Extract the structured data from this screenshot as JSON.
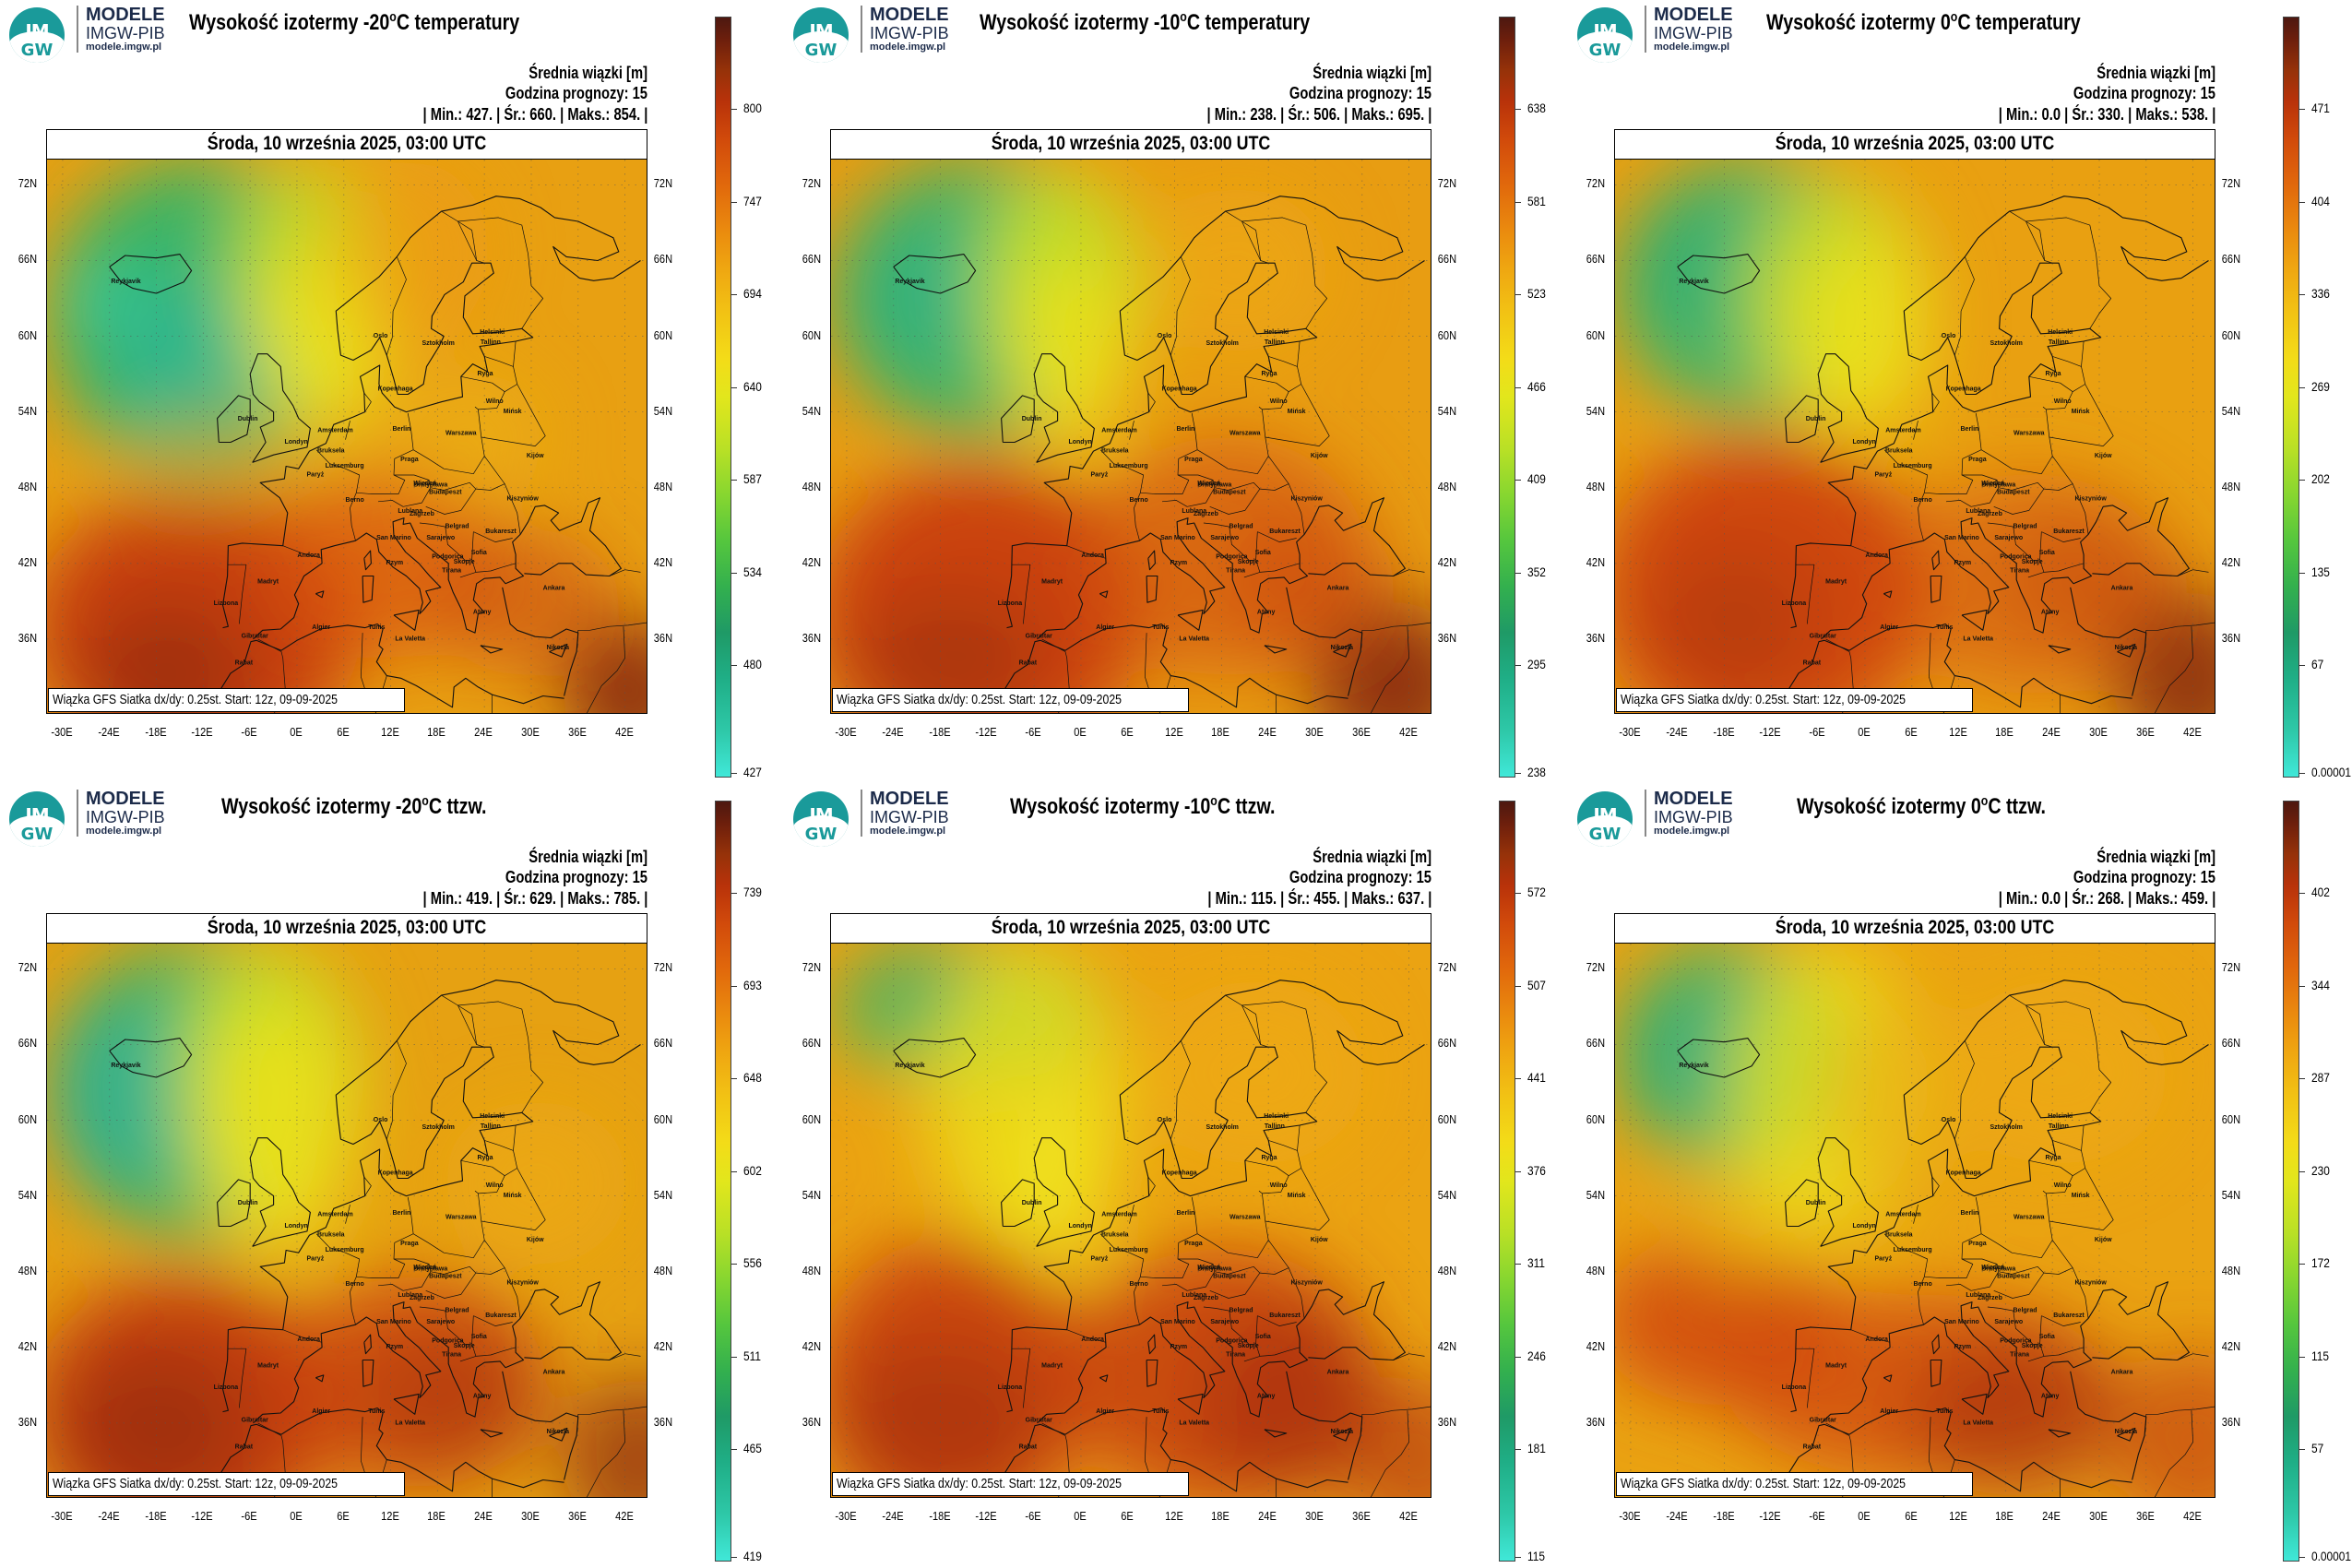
{
  "brand": {
    "line1": "MODELE",
    "line2": "IMGW-PIB",
    "line3": "modele.imgw.pl",
    "logo_top": "IM",
    "logo_bottom": "GW"
  },
  "common": {
    "units": "Średnia wiązki [m]",
    "hour": "Godzina prognozy: 15",
    "date": "Środa, 10 września 2025, 03:00 UTC",
    "footer": "Wiązka GFS Siatka dx/dy: 0.25st. Start: 12z, 09-09-2025",
    "lat_labels": [
      "72N",
      "66N",
      "60N",
      "54N",
      "48N",
      "42N",
      "36N"
    ],
    "lon_labels": [
      "-30E",
      "-24E",
      "-18E",
      "-12E",
      "-6E",
      "0E",
      "6E",
      "12E",
      "18E",
      "24E",
      "30E",
      "36E",
      "42E"
    ],
    "cities": [
      "Reykjavik",
      "Oslo",
      "Sztokholm",
      "Helsinki",
      "Tallinn",
      "Ryga",
      "Kopenhaga",
      "Wilno",
      "Mińsk",
      "Dublin",
      "Londyn",
      "Amsterdam",
      "Berlin",
      "Warszawa",
      "Bruksela",
      "Luksemburg",
      "Paryż",
      "Praga",
      "Kijów",
      "Wiedeń",
      "Berno",
      "Bratysława",
      "Budapeszt",
      "Kiszyniów",
      "Lublana",
      "Zagrzeb",
      "Belgrad",
      "Bukareszt",
      "Andora",
      "San Marino",
      "Sarajewo",
      "Sofia",
      "Podgorica",
      "Skopje",
      "Tirana",
      "Rzym",
      "Madryt",
      "Lizbona",
      "Ankara",
      "Ateny",
      "Gibraltar",
      "Algier",
      "Tunis",
      "La Valetta",
      "Nikozja",
      "Rabat"
    ],
    "icons": {
      "logo": "imgw-logo-icon"
    }
  },
  "panels": [
    {
      "title_pre": "Wysokość izotermy -20",
      "title_sup": "o",
      "title_post": "C temperatury",
      "min": "427.",
      "mean": "660.",
      "max": "854.",
      "colorbar_ticks": [
        "800",
        "747",
        "694",
        "640",
        "587",
        "534",
        "480",
        "427"
      ],
      "scheme": "t20"
    },
    {
      "title_pre": "Wysokość izotermy -10",
      "title_sup": "o",
      "title_post": "C temperatury",
      "min": "238.",
      "mean": "506.",
      "max": "695.",
      "colorbar_ticks": [
        "638",
        "581",
        "523",
        "466",
        "409",
        "352",
        "295",
        "238"
      ],
      "scheme": "t10"
    },
    {
      "title_pre": "Wysokość izotermy 0",
      "title_sup": "o",
      "title_post": "C temperatury",
      "min": "0.0",
      "mean": "330.",
      "max": "538.",
      "colorbar_ticks": [
        "471",
        "404",
        "336",
        "269",
        "202",
        "135",
        "67",
        "0.00001"
      ],
      "scheme": "t0"
    },
    {
      "title_pre": "Wysokość izotermy -20",
      "title_sup": "o",
      "title_post": "C ttzw.",
      "min": "419.",
      "mean": "629.",
      "max": "785.",
      "colorbar_ticks": [
        "739",
        "693",
        "648",
        "602",
        "556",
        "511",
        "465",
        "419"
      ],
      "scheme": "w20"
    },
    {
      "title_pre": "Wysokość izotermy -10",
      "title_sup": "o",
      "title_post": "C ttzw.",
      "min": "115.",
      "mean": "455.",
      "max": "637.",
      "colorbar_ticks": [
        "572",
        "507",
        "441",
        "376",
        "311",
        "246",
        "181",
        "115"
      ],
      "scheme": "w10"
    },
    {
      "title_pre": "Wysokość izotermy 0",
      "title_sup": "o",
      "title_post": "C ttzw.",
      "min": "0.0",
      "mean": "268.",
      "max": "459.",
      "colorbar_ticks": [
        "402",
        "344",
        "287",
        "230",
        "172",
        "115",
        "57",
        "0.00001"
      ],
      "scheme": "w0"
    }
  ],
  "labels": {
    "min": "Min.:",
    "mean": "Śr.:",
    "max": "Maks.:"
  },
  "colors": {
    "green": "#2fb56a",
    "yellow": "#f2e21a",
    "orange": "#ef9a10",
    "red": "#cc3b0e",
    "dark": "#6e1a0c",
    "cyan": "#40e8d8"
  }
}
